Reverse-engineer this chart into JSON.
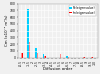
{
  "title": "",
  "xlabel": "Diffusion order",
  "ylabel": "Cm (x10⁻⁹ m²/s)",
  "categories": [
    "-0.5",
    "-1",
    "-1.5",
    "-2",
    "-2.5",
    "-3",
    "-3.5",
    "-4",
    "-4.5",
    "-5",
    "-5.5",
    "-6",
    "-6.5",
    "-7",
    "-7.5",
    "-8",
    "-8.5",
    "-9",
    "-9.5",
    "-10"
  ],
  "series1_label": "Re(eigenvalue)",
  "series2_label": "Im(eigenvalue)",
  "series1_color": "#00CFFF",
  "series2_color": "#FF0000",
  "series1_values": [
    0,
    0,
    720,
    0,
    140,
    0,
    55,
    0,
    0,
    0,
    0,
    0,
    28,
    0,
    0,
    0,
    0,
    0,
    0,
    0
  ],
  "series2_values": [
    75,
    0,
    240,
    0,
    65,
    0,
    22,
    0,
    0,
    0,
    48,
    0,
    12,
    0,
    0,
    0,
    15,
    0,
    10,
    0
  ],
  "ylim": [
    0,
    800
  ],
  "yticks": [
    0,
    100,
    200,
    300,
    400,
    500,
    600,
    700,
    800
  ],
  "background_color": "#f0f0f0",
  "grid_color": "#ffffff",
  "bar_width": 0.4,
  "tick_fontsize": 2.2,
  "label_fontsize": 2.8,
  "legend_fontsize": 2.2
}
